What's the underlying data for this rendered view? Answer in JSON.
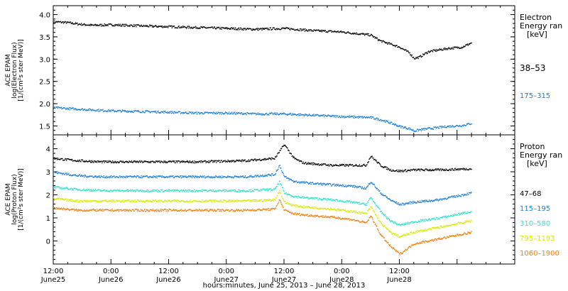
{
  "chart_data": [
    {
      "type": "scatter",
      "panel": "electron",
      "ylabel_lines": [
        "ACE EPAM",
        "log(Electron Flux)",
        "[1/(cm²s ster MeV)]"
      ],
      "ylim": [
        1.3,
        4.2
      ],
      "yticks": [
        1.5,
        2.0,
        2.5,
        3.0,
        3.5,
        4.0
      ],
      "ytick_labels": [
        "1.5",
        "2.0",
        "2.5",
        "3.0",
        "3.5",
        "4.0"
      ],
      "legend_title": [
        "Electron",
        "Energy ran",
        "[keV]"
      ],
      "series": [
        {
          "name": "38–53",
          "color": "#000000",
          "x": [
            0,
            3,
            5,
            8,
            12,
            20,
            30,
            36,
            42,
            48,
            54,
            60,
            66,
            68,
            70,
            72,
            74,
            75,
            76,
            78,
            82,
            85,
            87
          ],
          "y": [
            3.85,
            3.83,
            3.8,
            3.77,
            3.78,
            3.75,
            3.72,
            3.7,
            3.68,
            3.7,
            3.65,
            3.62,
            3.55,
            3.42,
            3.35,
            3.28,
            3.15,
            3.03,
            3.05,
            3.18,
            3.25,
            3.28,
            3.38
          ]
        },
        {
          "name": "175–315",
          "color": "#1f7fd4",
          "x": [
            0,
            3,
            8,
            12,
            20,
            30,
            36,
            42,
            48,
            54,
            60,
            66,
            68,
            70,
            72,
            74,
            75,
            76,
            78,
            82,
            85,
            87
          ],
          "y": [
            1.92,
            1.9,
            1.87,
            1.85,
            1.83,
            1.8,
            1.8,
            1.78,
            1.78,
            1.75,
            1.72,
            1.7,
            1.65,
            1.58,
            1.5,
            1.45,
            1.4,
            1.42,
            1.45,
            1.5,
            1.52,
            1.57
          ]
        }
      ]
    },
    {
      "type": "scatter",
      "panel": "proton",
      "ylabel_lines": [
        "ACE EPAM",
        "log(Proton Flux)",
        "[1/(cm²s ster MeV)]"
      ],
      "ylim": [
        -1.0,
        4.6
      ],
      "yticks": [
        0,
        1,
        2,
        3,
        4
      ],
      "ytick_labels": [
        "0",
        "1",
        "2",
        "3",
        "4"
      ],
      "legend_title": [
        "Proton",
        "Energy ran",
        "[keV]"
      ],
      "series": [
        {
          "name": "47–68",
          "color": "#000000",
          "x": [
            0,
            5,
            10,
            20,
            30,
            40,
            46,
            47,
            48,
            49,
            50,
            52,
            58,
            62,
            65,
            66,
            68,
            70,
            72,
            75,
            80,
            87
          ],
          "y": [
            3.6,
            3.5,
            3.45,
            3.45,
            3.45,
            3.5,
            3.6,
            3.9,
            4.2,
            3.9,
            3.6,
            3.4,
            3.3,
            3.3,
            3.3,
            3.7,
            3.3,
            3.1,
            3.05,
            3.1,
            3.1,
            3.15
          ]
        },
        {
          "name": "115–195",
          "color": "#1f7fd4",
          "x": [
            0,
            5,
            10,
            20,
            30,
            40,
            46,
            47,
            48,
            50,
            52,
            58,
            62,
            65,
            66,
            68,
            70,
            72,
            75,
            80,
            87
          ],
          "y": [
            3.0,
            2.85,
            2.8,
            2.8,
            2.8,
            2.8,
            2.9,
            3.3,
            2.8,
            2.6,
            2.55,
            2.45,
            2.4,
            2.3,
            2.6,
            2.1,
            1.8,
            1.6,
            1.7,
            1.8,
            2.1
          ]
        },
        {
          "name": "310–580",
          "color": "#2fe0d0",
          "x": [
            0,
            5,
            10,
            20,
            30,
            40,
            46,
            47,
            48,
            50,
            52,
            58,
            62,
            65,
            66,
            68,
            70,
            72,
            75,
            80,
            87
          ],
          "y": [
            2.35,
            2.25,
            2.2,
            2.2,
            2.2,
            2.2,
            2.25,
            2.6,
            2.1,
            1.95,
            1.9,
            1.8,
            1.7,
            1.6,
            1.9,
            1.3,
            0.9,
            0.7,
            0.85,
            1.0,
            1.3
          ]
        },
        {
          "name": "795–1193",
          "color": "#d8e800",
          "x": [
            0,
            5,
            10,
            20,
            30,
            40,
            46,
            47,
            48,
            50,
            52,
            58,
            62,
            65,
            66,
            68,
            70,
            72,
            75,
            80,
            87
          ],
          "y": [
            1.85,
            1.75,
            1.75,
            1.75,
            1.75,
            1.75,
            1.8,
            2.2,
            1.7,
            1.55,
            1.5,
            1.4,
            1.3,
            1.2,
            1.5,
            0.8,
            0.4,
            0.2,
            0.4,
            0.6,
            0.9
          ]
        },
        {
          "name": "1060–1900",
          "color": "#f08010",
          "x": [
            0,
            5,
            10,
            20,
            30,
            40,
            46,
            47,
            48,
            50,
            52,
            58,
            62,
            65,
            66,
            68,
            70,
            72,
            75,
            80,
            87
          ],
          "y": [
            1.45,
            1.35,
            1.35,
            1.35,
            1.35,
            1.35,
            1.4,
            1.8,
            1.35,
            1.2,
            1.15,
            1.05,
            0.95,
            0.8,
            1.1,
            0.3,
            -0.2,
            -0.55,
            -0.1,
            0.1,
            0.4
          ]
        }
      ]
    }
  ],
  "x_axis": {
    "unit_note": "x values are hours after 12:00 June 25, 2013",
    "xlim": [
      0,
      96
    ],
    "ticks": [
      0,
      12,
      24,
      36,
      48,
      60,
      72,
      84,
      96
    ],
    "major_labels": [
      {
        "at": 0,
        "time": "12:00",
        "day": "June25"
      },
      {
        "at": 12,
        "time": "0:00",
        "day": "June26"
      },
      {
        "at": 24,
        "time": "12:00",
        "day": "June26"
      },
      {
        "at": 36,
        "time": "0:00",
        "day": "June27"
      },
      {
        "at": 48,
        "time": "12:00",
        "day": "June27"
      },
      {
        "at": 60,
        "time": "0:00",
        "day": "June28"
      },
      {
        "at": 72,
        "time": "12:00",
        "day": "June28"
      }
    ],
    "label": "hours:minutes, June 25, 2013 – June 28, 2013"
  }
}
